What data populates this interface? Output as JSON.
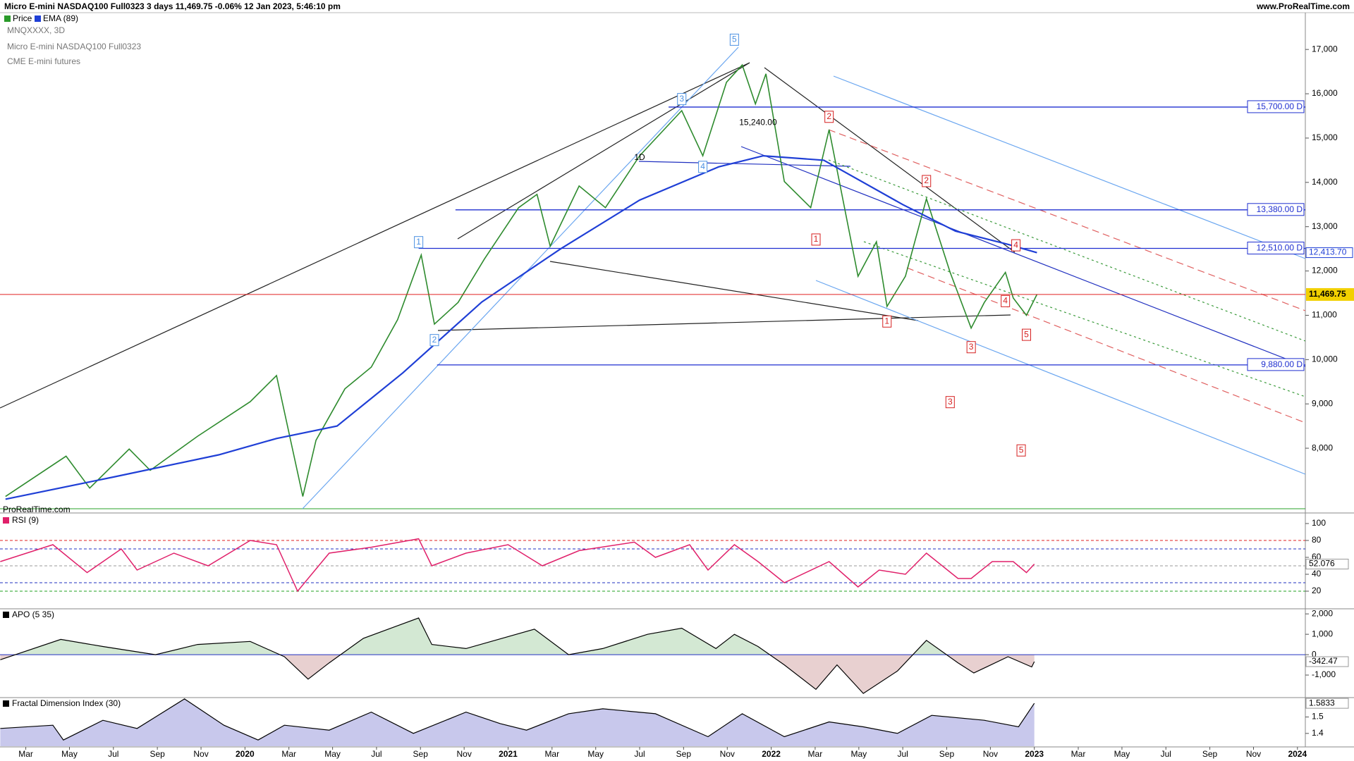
{
  "header": {
    "info": "Micro E-mini NASDAQ100 Full0323 3 days 11,469.75 -0.06% 12 Jan 2023, 5:46:10 pm",
    "site": "www.ProRealTime.com",
    "watermark": "ProRealTime.com"
  },
  "chart_data": [
    {
      "type": "line",
      "title": "MNQXXXX, 3D",
      "subtitle": "Micro E-mini NASDAQ100 Full0323",
      "subtitle2": "CME E-mini futures",
      "xlim": [
        2019.069,
        2024.03
      ],
      "ylim": [
        6570,
        17830
      ],
      "yticks": [
        {
          "value": 8000,
          "label": "8,000"
        },
        {
          "value": 9000,
          "label": "9,000"
        },
        {
          "value": 10000,
          "label": "10,000"
        },
        {
          "value": 11000,
          "label": "11,000"
        },
        {
          "value": 12000,
          "label": "12,000"
        },
        {
          "value": 13000,
          "label": "13,000"
        },
        {
          "value": 14000,
          "label": "14,000"
        },
        {
          "value": 15000,
          "label": "15,000"
        },
        {
          "value": 16000,
          "label": "16,000"
        },
        {
          "value": 17000,
          "label": "17,000"
        }
      ],
      "series": [
        {
          "name": "Price",
          "color": "#2e8b2e",
          "x": [
            2019.09,
            2019.32,
            2019.41,
            2019.56,
            2019.64,
            2019.82,
            2020.02,
            2020.12,
            2020.22,
            2020.27,
            2020.38,
            2020.48,
            2020.58,
            2020.67,
            2020.72,
            2020.81,
            2020.91,
            2021.04,
            2021.11,
            2021.16,
            2021.27,
            2021.37,
            2021.5,
            2021.66,
            2021.74,
            2021.83,
            2021.89,
            2021.94,
            2021.98,
            2022.05,
            2022.15,
            2022.22,
            2022.33,
            2022.4,
            2022.44,
            2022.51,
            2022.59,
            2022.68,
            2022.76,
            2022.81,
            2022.89,
            2022.92,
            2022.97,
            2023.01
          ],
          "values": [
            6910,
            7820,
            7100,
            7980,
            7500,
            8270,
            9050,
            9640,
            6910,
            8180,
            9340,
            9830,
            10900,
            12360,
            10800,
            11290,
            12270,
            13430,
            13730,
            12560,
            13920,
            13430,
            14600,
            15620,
            14600,
            16260,
            16650,
            15770,
            16450,
            14020,
            13430,
            15190,
            11880,
            12660,
            11200,
            11880,
            13630,
            11970,
            10710,
            11290,
            11970,
            11390,
            11000,
            11469.75
          ]
        },
        {
          "name": "EMA (89)",
          "color": "#1f3fd6",
          "x": [
            2019.09,
            2019.5,
            2019.9,
            2020.12,
            2020.35,
            2020.6,
            2020.9,
            2021.2,
            2021.5,
            2021.8,
            2021.97,
            2022.2,
            2022.5,
            2022.7,
            2022.9,
            2023.01
          ],
          "values": [
            6850,
            7350,
            7850,
            8220,
            8500,
            9700,
            11300,
            12500,
            13600,
            14350,
            14600,
            14500,
            13500,
            12900,
            12600,
            12413.7
          ]
        }
      ],
      "levels": [
        {
          "value": 15700,
          "label": "15,700.00 D",
          "start": 2021.61,
          "color": "#1f2fd0"
        },
        {
          "value": 13380,
          "label": "13,380.00 D",
          "start": 2020.8,
          "color": "#1f2fd0"
        },
        {
          "value": 12510,
          "label": "12,510.00 D",
          "start": 2020.66,
          "color": "#1f2fd0"
        },
        {
          "value": 9880,
          "label": "9,880.00 D",
          "start": 2020.73,
          "color": "#1f2fd0"
        }
      ],
      "last_price": {
        "value": 11469.75,
        "label": "11,469.75",
        "color": "#e02020"
      },
      "ema_last": {
        "value": 12413.7,
        "label": "12,413.70"
      },
      "annotations": [
        {
          "text": "1",
          "x": 2020.66,
          "y": 12650,
          "color": "#4a90e2"
        },
        {
          "text": "2",
          "x": 2020.72,
          "y": 10440,
          "color": "#4a90e2"
        },
        {
          "text": "3",
          "x": 2021.66,
          "y": 15880,
          "color": "#4a90e2"
        },
        {
          "text": "4",
          "x": 2021.74,
          "y": 14350,
          "color": "#4a90e2"
        },
        {
          "text": "5",
          "x": 2021.86,
          "y": 17220,
          "color": "#4a90e2"
        },
        {
          "text": "1",
          "x": 2022.17,
          "y": 12710,
          "color": "#d62020"
        },
        {
          "text": "2",
          "x": 2022.22,
          "y": 15480,
          "color": "#d62020"
        },
        {
          "text": "1",
          "x": 2022.44,
          "y": 10860,
          "color": "#d62020"
        },
        {
          "text": "2",
          "x": 2022.59,
          "y": 14030,
          "color": "#d62020"
        },
        {
          "text": "3",
          "x": 2022.76,
          "y": 10280,
          "color": "#d62020"
        },
        {
          "text": "3",
          "x": 2022.68,
          "y": 9040,
          "color": "#d62020"
        },
        {
          "text": "4",
          "x": 2022.93,
          "y": 12580,
          "color": "#d62020"
        },
        {
          "text": "4",
          "x": 2022.89,
          "y": 11320,
          "color": "#d62020"
        },
        {
          "text": "5",
          "x": 2022.97,
          "y": 10560,
          "color": "#d62020"
        },
        {
          "text": "5",
          "x": 2022.95,
          "y": 7950,
          "color": "#d62020"
        },
        {
          "text": "15,240.00",
          "x": 2021.95,
          "y": 15340,
          "color": "#000000"
        },
        {
          "text": "1D",
          "x": 2021.5,
          "y": 14560,
          "color": "#000000"
        }
      ]
    },
    {
      "type": "line",
      "title": "RSI (9)",
      "color": "#e0206a",
      "xlim": [
        2019.069,
        2024.03
      ],
      "ylim": [
        0,
        110
      ],
      "yticks": [
        20,
        40,
        60,
        80,
        100
      ],
      "x": [
        2019.07,
        2019.27,
        2019.4,
        2019.53,
        2019.59,
        2019.73,
        2019.86,
        2020.02,
        2020.12,
        2020.2,
        2020.32,
        2020.48,
        2020.66,
        2020.71,
        2020.84,
        2021.0,
        2021.13,
        2021.27,
        2021.48,
        2021.56,
        2021.69,
        2021.76,
        2021.86,
        2021.95,
        2022.05,
        2022.22,
        2022.33,
        2022.41,
        2022.51,
        2022.59,
        2022.71,
        2022.76,
        2022.84,
        2022.92,
        2022.97,
        2023.0
      ],
      "values": [
        55,
        75,
        42,
        70,
        45,
        65,
        50,
        80,
        75,
        20,
        65,
        72,
        82,
        50,
        65,
        75,
        50,
        68,
        78,
        60,
        75,
        45,
        75,
        55,
        30,
        55,
        25,
        45,
        40,
        65,
        35,
        35,
        55,
        55,
        42,
        52.076
      ],
      "levels": [
        {
          "value": 80,
          "color": "#e02020"
        },
        {
          "value": 70,
          "color": "#2030c0"
        },
        {
          "value": 50,
          "color": "#999999"
        },
        {
          "value": 30,
          "color": "#2030c0"
        },
        {
          "value": 20,
          "color": "#20a020"
        }
      ],
      "last_value": {
        "value": 52.076,
        "label": "52.076"
      }
    },
    {
      "type": "area",
      "title": "APO (5 35)",
      "color": "#000000",
      "area_colors": [
        "#d3e8d3",
        "#e8d0d0"
      ],
      "xlim": [
        2019.069,
        2024.03
      ],
      "ylim": [
        -2070,
        2180
      ],
      "yticks": [
        {
          "value": 2000,
          "label": "2,000"
        },
        {
          "value": 1000,
          "label": "1,000"
        },
        0,
        {
          "value": -1000,
          "label": "-1,000"
        }
      ],
      "x": [
        2019.07,
        2019.3,
        2019.46,
        2019.66,
        2019.82,
        2020.02,
        2020.15,
        2020.24,
        2020.32,
        2020.45,
        2020.66,
        2020.71,
        2020.84,
        2021.1,
        2021.23,
        2021.36,
        2021.53,
        2021.66,
        2021.79,
        2021.86,
        2021.95,
        2022.05,
        2022.17,
        2022.25,
        2022.35,
        2022.48,
        2022.59,
        2022.71,
        2022.77,
        2022.9,
        2022.99,
        2023.0
      ],
      "values": [
        -250,
        750,
        400,
        0,
        500,
        650,
        -100,
        -1200,
        -400,
        800,
        1800,
        500,
        300,
        1250,
        0,
        300,
        1000,
        1300,
        300,
        1000,
        400,
        -500,
        -1700,
        -500,
        -1900,
        -800,
        700,
        -400,
        -900,
        -100,
        -600,
        -342.47
      ],
      "last_value": {
        "value": -342.47,
        "label": "-342.47"
      }
    },
    {
      "type": "area",
      "title": "Fractal Dimension Index (30)",
      "color": "#000000",
      "area_colors": [
        "#c8c8ec"
      ],
      "xlim": [
        2019.069,
        2024.03
      ],
      "ylim": [
        1.322,
        1.614
      ],
      "yticks": [
        1.5,
        1.4
      ],
      "x": [
        2019.07,
        2019.27,
        2019.31,
        2019.46,
        2019.59,
        2019.77,
        2019.92,
        2020.05,
        2020.15,
        2020.32,
        2020.48,
        2020.64,
        2020.84,
        2020.97,
        2021.07,
        2021.23,
        2021.36,
        2021.56,
        2021.76,
        2021.89,
        2022.05,
        2022.22,
        2022.35,
        2022.48,
        2022.61,
        2022.81,
        2022.94,
        2023.0
      ],
      "values": [
        1.43,
        1.45,
        1.36,
        1.48,
        1.43,
        1.61,
        1.45,
        1.36,
        1.45,
        1.42,
        1.53,
        1.4,
        1.53,
        1.46,
        1.42,
        1.52,
        1.55,
        1.52,
        1.38,
        1.52,
        1.38,
        1.47,
        1.44,
        1.4,
        1.51,
        1.48,
        1.44,
        1.5833
      ],
      "last_value": {
        "value": 1.5833,
        "label": "1.5833"
      },
      "xticks": [
        {
          "value": 2019.167,
          "label": "Mar"
        },
        {
          "value": 2019.333,
          "label": "May"
        },
        {
          "value": 2019.5,
          "label": "Jul"
        },
        {
          "value": 2019.667,
          "label": "Sep"
        },
        {
          "value": 2019.833,
          "label": "Nov"
        },
        2020,
        {
          "value": 2020.167,
          "label": "Mar"
        },
        {
          "value": 2020.333,
          "label": "May"
        },
        {
          "value": 2020.5,
          "label": "Jul"
        },
        {
          "value": 2020.667,
          "label": "Sep"
        },
        {
          "value": 2020.833,
          "label": "Nov"
        },
        2021,
        {
          "value": 2021.167,
          "label": "Mar"
        },
        {
          "value": 2021.333,
          "label": "May"
        },
        {
          "value": 2021.5,
          "label": "Jul"
        },
        {
          "value": 2021.667,
          "label": "Sep"
        },
        {
          "value": 2021.833,
          "label": "Nov"
        },
        2022,
        {
          "value": 2022.167,
          "label": "Mar"
        },
        {
          "value": 2022.333,
          "label": "May"
        },
        {
          "value": 2022.5,
          "label": "Jul"
        },
        {
          "value": 2022.667,
          "label": "Sep"
        },
        {
          "value": 2022.833,
          "label": "Nov"
        },
        2023,
        {
          "value": 2023.167,
          "label": "Mar"
        },
        {
          "value": 2023.333,
          "label": "May"
        },
        {
          "value": 2023.5,
          "label": "Jul"
        },
        {
          "value": 2023.667,
          "label": "Sep"
        },
        {
          "value": 2023.833,
          "label": "Nov"
        },
        2024
      ]
    }
  ]
}
